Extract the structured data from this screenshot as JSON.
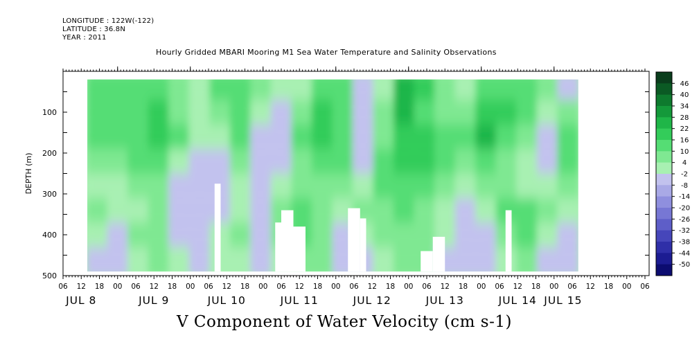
{
  "header": {
    "longitude": "LONGITUDE : 122W(-122)",
    "latitude": "LATITUDE : 36.8N",
    "year": "YEAR : 2011"
  },
  "chart_data": {
    "type": "heatmap",
    "title": "Hourly Gridded MBARI Mooring M1 Sea Water Temperature and Salinity Observations",
    "xlabel": "",
    "ylabel": "DEPTH (m)",
    "colorbar_label": "V Component of Water Velocity (cm s-1)",
    "ylim": [
      500,
      0
    ],
    "y_ticks": [
      100,
      200,
      300,
      400,
      500
    ],
    "x_hour_ticks": [
      "06",
      "12",
      "18",
      "00",
      "06",
      "12",
      "18",
      "00",
      "06",
      "12",
      "18",
      "00",
      "06",
      "12",
      "18",
      "00",
      "06",
      "12",
      "18",
      "00",
      "06",
      "12",
      "18",
      "00",
      "06",
      "12",
      "18",
      "00",
      "06",
      "12",
      "18",
      "00",
      "06"
    ],
    "x_day_labels": [
      "JUL 8",
      "JUL 9",
      "JUL 10",
      "JUL 11",
      "JUL 12",
      "JUL 13",
      "JUL 14",
      "JUL 15"
    ],
    "colorbar_levels": [
      "46",
      "40",
      "34",
      "28",
      "22",
      "16",
      "10",
      "4",
      "-2",
      "-8",
      "-14",
      "-20",
      "-26",
      "-32",
      "-38",
      "-44",
      "-50"
    ],
    "colorbar_colors": [
      "#0a3d1c",
      "#0b5a24",
      "#0e7a2e",
      "#14993a",
      "#1fb648",
      "#33cc5a",
      "#55dd74",
      "#7fe892",
      "#a8f0b2",
      "#c2c2ee",
      "#a9a9e6",
      "#8f8fde",
      "#7777d4",
      "#5e5ec8",
      "#4646ba",
      "#2f2fa8",
      "#1c1c92",
      "#0c0c70"
    ],
    "data_extent": {
      "x_start": "JUL 8 14:00",
      "x_end": "JUL 15 08:00",
      "depth_top": 20,
      "depth_bottom": 490
    },
    "field_rows": [
      {
        "depth": 40,
        "values": [
          10,
          10,
          12,
          10,
          4,
          2,
          10,
          12,
          4,
          -2,
          -2,
          10,
          10,
          -8,
          -2,
          22,
          16,
          4,
          -2,
          10,
          10,
          10,
          4,
          -8
        ]
      },
      {
        "depth": 100,
        "values": [
          10,
          12,
          10,
          16,
          4,
          -2,
          4,
          10,
          -2,
          -8,
          4,
          16,
          10,
          -8,
          4,
          22,
          10,
          4,
          4,
          16,
          16,
          10,
          -2,
          4
        ]
      },
      {
        "depth": 160,
        "values": [
          10,
          10,
          10,
          16,
          10,
          -2,
          -2,
          10,
          -8,
          -8,
          10,
          16,
          10,
          -8,
          4,
          16,
          16,
          10,
          10,
          22,
          10,
          4,
          -8,
          10
        ]
      },
      {
        "depth": 220,
        "values": [
          4,
          4,
          10,
          10,
          -2,
          -8,
          -8,
          4,
          -8,
          -8,
          4,
          10,
          10,
          -8,
          10,
          16,
          16,
          10,
          4,
          10,
          4,
          -2,
          -8,
          10
        ]
      },
      {
        "depth": 280,
        "values": [
          -2,
          -2,
          4,
          4,
          -8,
          -8,
          -8,
          -2,
          -8,
          -2,
          4,
          4,
          4,
          -2,
          10,
          10,
          10,
          4,
          -2,
          4,
          4,
          -2,
          -2,
          4
        ]
      },
      {
        "depth": 340,
        "values": [
          4,
          -2,
          -2,
          4,
          -8,
          -8,
          -8,
          -2,
          -8,
          4,
          10,
          4,
          -2,
          4,
          4,
          10,
          4,
          -2,
          -8,
          -2,
          10,
          10,
          4,
          -2
        ]
      },
      {
        "depth": 400,
        "values": [
          -2,
          -8,
          4,
          4,
          -8,
          -8,
          -2,
          4,
          -8,
          4,
          10,
          4,
          -8,
          -2,
          4,
          4,
          4,
          -2,
          -8,
          -8,
          4,
          10,
          -2,
          -8
        ]
      },
      {
        "depth": 460,
        "values": [
          -8,
          -8,
          -2,
          4,
          -2,
          -8,
          -2,
          -2,
          -8,
          -2,
          4,
          4,
          -8,
          -8,
          -2,
          4,
          4,
          -8,
          -8,
          -8,
          -2,
          4,
          -8,
          -8
        ]
      }
    ],
    "missing_regions": [
      {
        "x_start": "JUL 10 08:00",
        "x_end": "JUL 10 10:00",
        "depth_start": 275,
        "depth_end": 490
      },
      {
        "x_start": "JUL 11 04:00",
        "x_end": "JUL 11 06:00",
        "depth_start": 370,
        "depth_end": 490
      },
      {
        "x_start": "JUL 11 06:00",
        "x_end": "JUL 11 10:00",
        "depth_start": 340,
        "depth_end": 490
      },
      {
        "x_start": "JUL 11 10:00",
        "x_end": "JUL 11 14:00",
        "depth_start": 380,
        "depth_end": 490
      },
      {
        "x_start": "JUL 12 04:00",
        "x_end": "JUL 12 08:00",
        "depth_start": 335,
        "depth_end": 490
      },
      {
        "x_start": "JUL 12 08:00",
        "x_end": "JUL 12 10:00",
        "depth_start": 360,
        "depth_end": 490
      },
      {
        "x_start": "JUL 13 04:00",
        "x_end": "JUL 13 08:00",
        "depth_start": 440,
        "depth_end": 490
      },
      {
        "x_start": "JUL 13 08:00",
        "x_end": "JUL 13 12:00",
        "depth_start": 405,
        "depth_end": 490
      },
      {
        "x_start": "JUL 14 08:00",
        "x_end": "JUL 14 10:00",
        "depth_start": 340,
        "depth_end": 490
      }
    ]
  }
}
